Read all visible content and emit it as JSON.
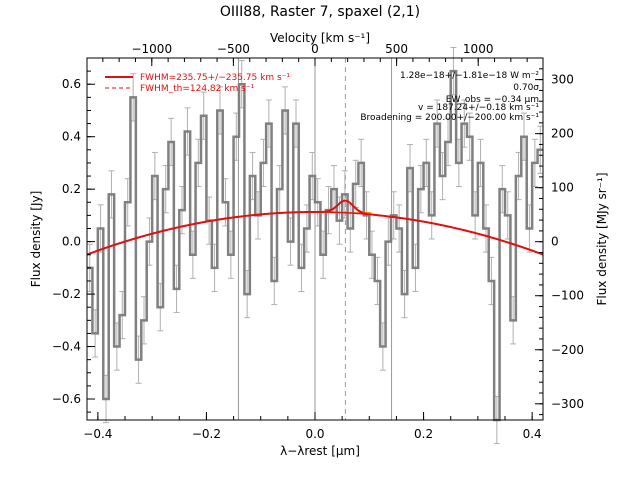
{
  "chart_data": {
    "type": "line",
    "title": "OIII88, Raster 7, spaxel (2,1)",
    "xlabel": "λ−λrest [μm]",
    "ylabel": "Flux density [Jy]",
    "ylabel_right": "Flux density [MJy sr⁻¹]",
    "xlabel_top": "Velocity [km s⁻¹]",
    "xlim": [
      -0.42,
      0.42
    ],
    "ylim": [
      -0.68,
      0.7
    ],
    "ylim_right": [
      -330,
      340
    ],
    "xlim_top": [
      -1397,
      1397
    ],
    "grid": false,
    "legend_position": "top-left",
    "x_ticks": [
      "−0.4",
      "−0.2",
      "0.0",
      "0.2",
      "0.4"
    ],
    "y_ticks": [
      "−0.6",
      "−0.4",
      "−0.2",
      "0.0",
      "0.2",
      "0.4",
      "0.6"
    ],
    "y_ticks_right": [
      "−300",
      "−200",
      "−100",
      "0",
      "100",
      "200",
      "300"
    ],
    "x_ticks_top": [
      "−1000",
      "−500",
      "0",
      "500",
      "1000"
    ],
    "vlines_solid": [
      -0.141,
      0.0,
      0.141
    ],
    "vline_dashed": 0.056,
    "spectrum": {
      "x": [
        -0.42,
        -0.41,
        -0.4,
        -0.39,
        -0.38,
        -0.37,
        -0.36,
        -0.35,
        -0.34,
        -0.33,
        -0.32,
        -0.31,
        -0.3,
        -0.29,
        -0.28,
        -0.27,
        -0.26,
        -0.25,
        -0.24,
        -0.23,
        -0.22,
        -0.21,
        -0.2,
        -0.19,
        -0.18,
        -0.17,
        -0.16,
        -0.15,
        -0.14,
        -0.13,
        -0.12,
        -0.11,
        -0.1,
        -0.09,
        -0.08,
        -0.07,
        -0.06,
        -0.05,
        -0.04,
        -0.03,
        -0.02,
        -0.01,
        0.0,
        0.01,
        0.02,
        0.03,
        0.04,
        0.05,
        0.06,
        0.07,
        0.08,
        0.09,
        0.1,
        0.11,
        0.12,
        0.13,
        0.14,
        0.15,
        0.16,
        0.17,
        0.18,
        0.19,
        0.2,
        0.21,
        0.22,
        0.23,
        0.24,
        0.25,
        0.26,
        0.27,
        0.28,
        0.29,
        0.3,
        0.31,
        0.32,
        0.33,
        0.34,
        0.35,
        0.36,
        0.37,
        0.38,
        0.39,
        0.4,
        0.41
      ],
      "y": [
        -0.1,
        -0.35,
        0.05,
        -0.6,
        0.18,
        -0.4,
        -0.28,
        0.15,
        0.55,
        -0.45,
        -0.3,
        0.0,
        0.25,
        -0.25,
        0.2,
        0.38,
        -0.18,
        0.12,
        0.42,
        -0.05,
        0.3,
        0.48,
        0.08,
        -0.1,
        0.5,
        0.15,
        -0.05,
        0.4,
        0.6,
        -0.2,
        0.25,
        0.1,
        0.3,
        0.45,
        -0.15,
        0.2,
        0.5,
        0.0,
        0.45,
        -0.1,
        0.05,
        0.25,
        0.15,
        -0.05,
        0.12,
        0.2,
        0.08,
        0.18,
        0.05,
        0.22,
        0.3,
        0.1,
        -0.05,
        -0.15,
        -0.4,
        0.0,
        0.1,
        0.05,
        -0.2,
        0.28,
        -0.1,
        0.2,
        0.3,
        0.1,
        0.45,
        0.25,
        0.38,
        0.65,
        0.3,
        0.45,
        0.4,
        0.1,
        0.3,
        0.05,
        -0.15,
        -0.68,
        0.2,
        0.1,
        -0.3,
        0.25,
        0.4,
        0.05,
        0.3,
        0.35
      ],
      "err": 0.09
    },
    "fit": {
      "continuum": {
        "a": 0.113,
        "b": 0.0,
        "c": -0.92
      },
      "line_center": 0.056,
      "line_sigma": 0.0142,
      "line_peak": 0.046
    },
    "legend": [
      {
        "label": "FWHM=235.75+/−235.75 km s⁻¹",
        "style": "solid",
        "color": "#e01010"
      },
      {
        "label": "FWHM_th=124.82 km s⁻¹",
        "style": "dashed",
        "color": "#e01010"
      }
    ],
    "annotations": [
      "1.28e−18+/−1.81e−18 W m⁻²",
      "0.70σ",
      "EW_obs = −0.34 μm",
      "v = 187.24+/−0.18 km s⁻¹",
      "Broadening = 200.00+/−200.00 km s⁻¹"
    ],
    "colors": {
      "spectrum": "#808080",
      "errorbar": "#b0b0b0",
      "fit": "#e01010",
      "component": "#ff8800",
      "frame": "#000000"
    }
  }
}
